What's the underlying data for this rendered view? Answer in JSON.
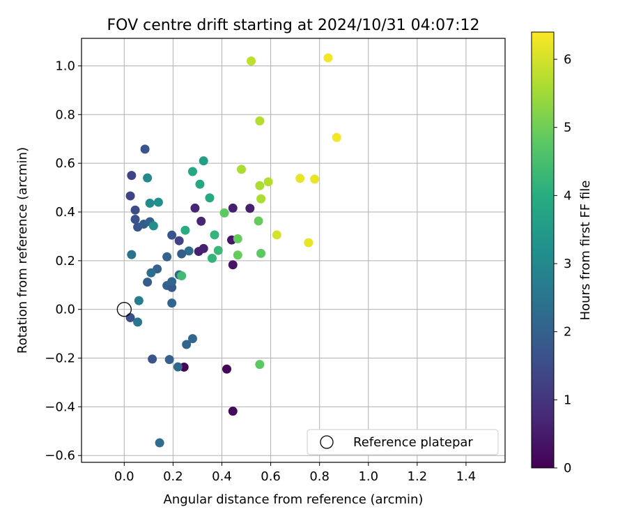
{
  "chart_data": {
    "type": "scatter",
    "title": "FOV centre drift starting at 2024/10/31 04:07:12",
    "xlabel": "Angular distance from reference (arcmin)",
    "ylabel": "Rotation from reference (arcmin)",
    "xlim": [
      -0.175,
      1.56
    ],
    "ylim": [
      -0.628,
      1.113
    ],
    "xticks": [
      "0.0",
      "0.2",
      "0.4",
      "0.6",
      "0.8",
      "1.0",
      "1.2",
      "1.4"
    ],
    "yticks": [
      "−0.6",
      "−0.4",
      "−0.2",
      "0.0",
      "0.2",
      "0.4",
      "0.6",
      "0.8",
      "1.0"
    ],
    "grid": true,
    "legend": {
      "placement": "lower-right",
      "entries": [
        "Reference platepar"
      ]
    },
    "reference_point": {
      "x": 0.0,
      "y": 0.0,
      "label": "Reference platepar"
    },
    "colorbar": {
      "label": "Hours from first FF file",
      "colormap": "viridis",
      "min": 0,
      "max": 6.4,
      "ticks": [
        "0",
        "1",
        "2",
        "3",
        "4",
        "5",
        "6"
      ]
    },
    "points": [
      {
        "x": 0.245,
        "y": -0.237,
        "c": 0.05
      },
      {
        "x": 0.42,
        "y": -0.245,
        "c": 0.1
      },
      {
        "x": 0.445,
        "y": -0.418,
        "c": 0.15
      },
      {
        "x": 0.445,
        "y": 0.183,
        "c": 0.4
      },
      {
        "x": 0.44,
        "y": 0.285,
        "c": 0.4
      },
      {
        "x": 0.445,
        "y": 0.416,
        "c": 0.55
      },
      {
        "x": 0.515,
        "y": 0.415,
        "c": 0.55
      },
      {
        "x": 0.325,
        "y": 0.25,
        "c": 0.6
      },
      {
        "x": 0.305,
        "y": 0.238,
        "c": 0.6
      },
      {
        "x": 0.315,
        "y": 0.362,
        "c": 0.7
      },
      {
        "x": 0.29,
        "y": 0.416,
        "c": 0.7
      },
      {
        "x": 0.03,
        "y": 0.55,
        "c": 1.3
      },
      {
        "x": 0.025,
        "y": 0.466,
        "c": 1.3
      },
      {
        "x": 0.085,
        "y": 0.658,
        "c": 1.7
      },
      {
        "x": 0.045,
        "y": 0.408,
        "c": 1.5
      },
      {
        "x": 0.045,
        "y": 0.37,
        "c": 1.6
      },
      {
        "x": 0.055,
        "y": 0.338,
        "c": 1.7
      },
      {
        "x": 0.08,
        "y": 0.35,
        "c": 1.9
      },
      {
        "x": 0.105,
        "y": 0.36,
        "c": 2.0
      },
      {
        "x": 0.225,
        "y": 0.282,
        "c": 1.3
      },
      {
        "x": 0.195,
        "y": 0.305,
        "c": 1.7
      },
      {
        "x": 0.265,
        "y": 0.24,
        "c": 2.3
      },
      {
        "x": 0.235,
        "y": 0.228,
        "c": 1.9
      },
      {
        "x": 0.175,
        "y": 0.216,
        "c": 2.0
      },
      {
        "x": 0.03,
        "y": 0.225,
        "c": 2.4
      },
      {
        "x": 0.135,
        "y": 0.166,
        "c": 2.0
      },
      {
        "x": 0.11,
        "y": 0.15,
        "c": 2.3
      },
      {
        "x": 0.095,
        "y": 0.112,
        "c": 1.9
      },
      {
        "x": 0.175,
        "y": 0.098,
        "c": 2.0
      },
      {
        "x": 0.195,
        "y": 0.09,
        "c": 1.8
      },
      {
        "x": 0.195,
        "y": 0.114,
        "c": 2.1
      },
      {
        "x": 0.195,
        "y": 0.026,
        "c": 2.1
      },
      {
        "x": 0.225,
        "y": 0.142,
        "c": 2.2
      },
      {
        "x": 0.06,
        "y": 0.036,
        "c": 2.7
      },
      {
        "x": 0.025,
        "y": -0.034,
        "c": 1.6
      },
      {
        "x": 0.055,
        "y": -0.052,
        "c": 2.5
      },
      {
        "x": 0.115,
        "y": -0.204,
        "c": 1.7
      },
      {
        "x": 0.185,
        "y": -0.206,
        "c": 2.0
      },
      {
        "x": 0.22,
        "y": -0.236,
        "c": 2.2
      },
      {
        "x": 0.255,
        "y": -0.144,
        "c": 2.1
      },
      {
        "x": 0.28,
        "y": -0.12,
        "c": 2.2
      },
      {
        "x": 0.145,
        "y": -0.548,
        "c": 2.3
      },
      {
        "x": 0.095,
        "y": 0.54,
        "c": 3.0
      },
      {
        "x": 0.105,
        "y": 0.436,
        "c": 3.1
      },
      {
        "x": 0.14,
        "y": 0.44,
        "c": 3.2
      },
      {
        "x": 0.12,
        "y": 0.343,
        "c": 3.2
      },
      {
        "x": 0.325,
        "y": 0.61,
        "c": 3.6
      },
      {
        "x": 0.28,
        "y": 0.566,
        "c": 3.8
      },
      {
        "x": 0.31,
        "y": 0.514,
        "c": 3.8
      },
      {
        "x": 0.35,
        "y": 0.458,
        "c": 3.9
      },
      {
        "x": 0.25,
        "y": 0.325,
        "c": 4.0
      },
      {
        "x": 0.37,
        "y": 0.306,
        "c": 4.2
      },
      {
        "x": 0.385,
        "y": 0.242,
        "c": 4.3
      },
      {
        "x": 0.36,
        "y": 0.21,
        "c": 4.2
      },
      {
        "x": 0.235,
        "y": 0.138,
        "c": 4.4
      },
      {
        "x": 0.41,
        "y": 0.396,
        "c": 4.8
      },
      {
        "x": 0.465,
        "y": 0.29,
        "c": 4.9
      },
      {
        "x": 0.465,
        "y": 0.223,
        "c": 4.9
      },
      {
        "x": 0.55,
        "y": 0.363,
        "c": 4.9
      },
      {
        "x": 0.56,
        "y": 0.23,
        "c": 4.8
      },
      {
        "x": 0.555,
        "y": -0.226,
        "c": 4.8
      },
      {
        "x": 0.48,
        "y": 0.575,
        "c": 5.6
      },
      {
        "x": 0.555,
        "y": 0.508,
        "c": 5.6
      },
      {
        "x": 0.56,
        "y": 0.454,
        "c": 5.6
      },
      {
        "x": 0.59,
        "y": 0.524,
        "c": 5.7
      },
      {
        "x": 0.555,
        "y": 0.774,
        "c": 5.7
      },
      {
        "x": 0.52,
        "y": 1.02,
        "c": 5.8
      },
      {
        "x": 0.625,
        "y": 0.306,
        "c": 6.0
      },
      {
        "x": 0.72,
        "y": 0.538,
        "c": 6.2
      },
      {
        "x": 0.78,
        "y": 0.535,
        "c": 6.2
      },
      {
        "x": 0.755,
        "y": 0.274,
        "c": 6.2
      },
      {
        "x": 0.835,
        "y": 1.033,
        "c": 6.3
      },
      {
        "x": 0.87,
        "y": 0.706,
        "c": 6.3
      }
    ]
  }
}
